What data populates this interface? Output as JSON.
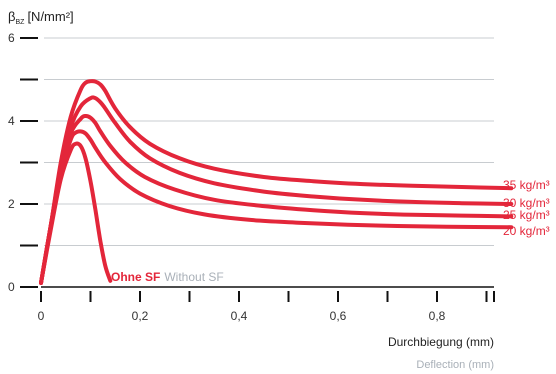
{
  "chart_data": {
    "type": "line",
    "y_label_main": "β",
    "y_label_sub": "BZ",
    "y_label_unit": "[N/mm²]",
    "x_label": "Durchbiegung (mm)",
    "x_label_alt": "Deflection (mm)",
    "xlim": [
      0,
      1.0
    ],
    "ylim": [
      0,
      6
    ],
    "x_ticks": [
      0,
      0.1,
      0.2,
      0.3,
      0.4,
      0.5,
      0.6,
      0.7,
      0.8,
      0.9,
      1.0
    ],
    "x_tick_labels": [
      "0",
      "",
      "0,2",
      "",
      "0,4",
      "",
      "0,6",
      "",
      "0,8",
      "",
      ""
    ],
    "y_ticks": [
      0,
      1,
      2,
      3,
      4,
      5,
      6
    ],
    "y_tick_labels": [
      "0",
      "",
      "2",
      "",
      "4",
      "",
      "6"
    ],
    "grid": true,
    "colors": {
      "series": "#e3263a",
      "grid": "#c8ccd0",
      "axis": "#111111",
      "muted": "#a9b0b8"
    },
    "series": [
      {
        "name": "35 kg/m³",
        "x": [
          0.0,
          0.02,
          0.04,
          0.06,
          0.08,
          0.09,
          0.1,
          0.11,
          0.12,
          0.13,
          0.15,
          0.18,
          0.22,
          0.28,
          0.35,
          0.45,
          0.55,
          0.65,
          0.75,
          0.85,
          0.95
        ],
        "y": [
          0.1,
          1.5,
          3.0,
          4.1,
          4.75,
          4.92,
          4.96,
          4.95,
          4.88,
          4.72,
          4.3,
          3.85,
          3.45,
          3.1,
          2.85,
          2.65,
          2.55,
          2.48,
          2.44,
          2.41,
          2.38
        ]
      },
      {
        "name": "30 kg/m³",
        "x": [
          0.0,
          0.02,
          0.04,
          0.06,
          0.08,
          0.1,
          0.11,
          0.12,
          0.13,
          0.15,
          0.18,
          0.22,
          0.28,
          0.35,
          0.45,
          0.55,
          0.65,
          0.75,
          0.85,
          0.95
        ],
        "y": [
          0.1,
          1.5,
          2.9,
          3.85,
          4.35,
          4.55,
          4.55,
          4.45,
          4.3,
          3.95,
          3.5,
          3.1,
          2.75,
          2.5,
          2.3,
          2.18,
          2.1,
          2.05,
          2.02,
          2.0
        ]
      },
      {
        "name": "25 kg/m³",
        "x": [
          0.0,
          0.02,
          0.04,
          0.06,
          0.08,
          0.09,
          0.1,
          0.11,
          0.12,
          0.14,
          0.17,
          0.21,
          0.27,
          0.35,
          0.45,
          0.55,
          0.65,
          0.75,
          0.85,
          0.95
        ],
        "y": [
          0.1,
          1.5,
          2.8,
          3.7,
          4.05,
          4.12,
          4.08,
          3.95,
          3.75,
          3.4,
          3.0,
          2.65,
          2.35,
          2.1,
          1.95,
          1.85,
          1.78,
          1.74,
          1.72,
          1.7
        ]
      },
      {
        "name": "20 kg/m³",
        "x": [
          0.0,
          0.02,
          0.04,
          0.06,
          0.07,
          0.08,
          0.09,
          0.1,
          0.11,
          0.13,
          0.16,
          0.2,
          0.26,
          0.33,
          0.42,
          0.52,
          0.62,
          0.72,
          0.82,
          0.95
        ],
        "y": [
          0.1,
          1.5,
          2.75,
          3.55,
          3.72,
          3.75,
          3.7,
          3.55,
          3.35,
          3.0,
          2.6,
          2.25,
          1.95,
          1.75,
          1.62,
          1.55,
          1.5,
          1.47,
          1.45,
          1.44
        ]
      },
      {
        "name": "Ohne SF",
        "name_alt": "Without SF",
        "x": [
          0.0,
          0.02,
          0.04,
          0.06,
          0.07,
          0.08,
          0.09,
          0.1,
          0.11,
          0.12,
          0.13,
          0.14
        ],
        "y": [
          0.1,
          1.4,
          2.6,
          3.3,
          3.45,
          3.4,
          3.1,
          2.55,
          1.85,
          1.1,
          0.5,
          0.15
        ]
      }
    ]
  }
}
